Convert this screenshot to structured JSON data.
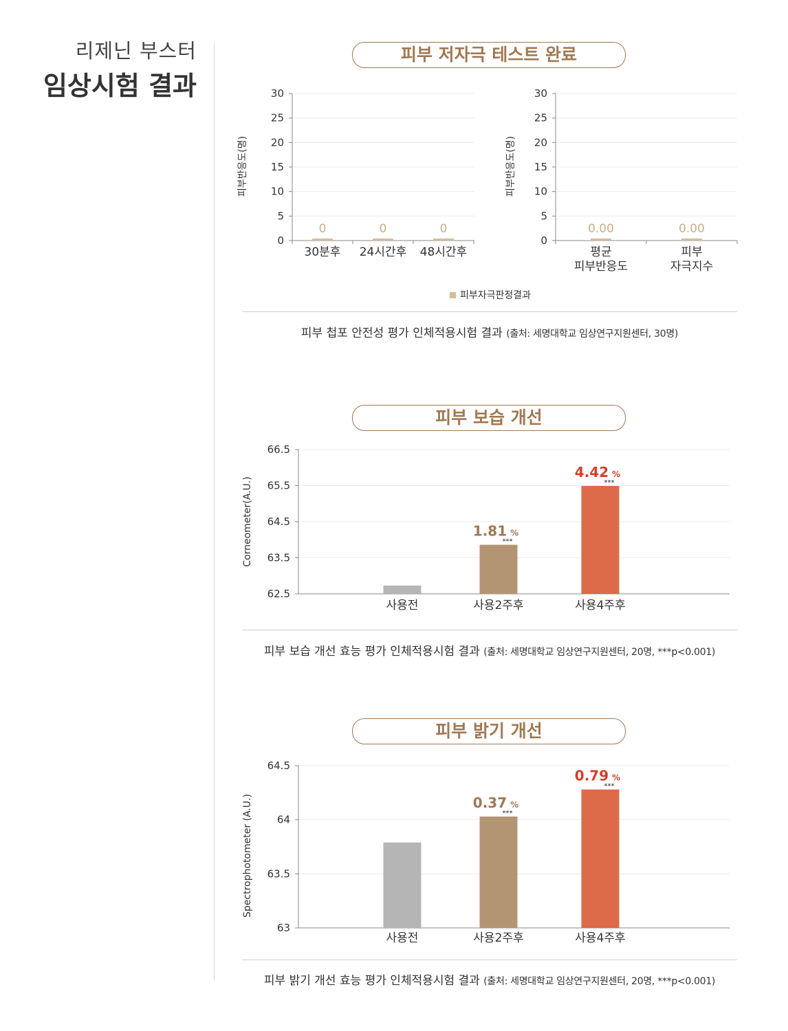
{
  "heading": {
    "subtitle": "리제닌 부스터",
    "title": "임상시험 결과"
  },
  "sections": [
    {
      "pill_title": "피부 저자극 테스트 완료",
      "caption_main": "피부 첩포 안전성 평가 인체적용시험 결과",
      "caption_source": "(출처: 세명대학교 임상연구지원센터, 30명)"
    },
    {
      "pill_title": "피부 보습 개선",
      "caption_main": "피부 보습 개선 효능 평가 인체적용시험 결과",
      "caption_source": "(출처: 세명대학교 임상연구지원센터, 20명, ***p<0.001)"
    },
    {
      "pill_title": "피부 밝기 개선",
      "caption_main": "피부 밝기 개선 효능 평가 인체적용시험 결과",
      "caption_source": "(출처: 세명대학교 임상연구지원센터, 20명, ***p<0.001)"
    }
  ],
  "legend": {
    "label": "피부자극판정결과",
    "color": "#d6bd9e"
  },
  "chart_data": [
    {
      "id": "irr1",
      "type": "bar",
      "ylabel": "피부반응도(명)",
      "ylim": [
        0,
        30
      ],
      "yticks": [
        "0",
        "5",
        "10",
        "15",
        "20",
        "25",
        "30"
      ],
      "categories": [
        [
          "30분후"
        ],
        [
          "24시간후"
        ],
        [
          "48시간후"
        ]
      ],
      "values": [
        0,
        0,
        0
      ],
      "data_labels": [
        "0",
        "0",
        "0"
      ],
      "bar_color": "#d6bd9e",
      "label_color": "#c9ad8a",
      "grid": true
    },
    {
      "id": "irr2",
      "type": "bar",
      "ylabel": "피부반응도(명)",
      "ylim": [
        0,
        30
      ],
      "yticks": [
        "0",
        "5",
        "10",
        "15",
        "20",
        "25",
        "30"
      ],
      "categories": [
        [
          "평균",
          "피부반응도"
        ],
        [
          "피부",
          "자극지수"
        ]
      ],
      "values": [
        0,
        0
      ],
      "data_labels": [
        "0.00",
        "0.00"
      ],
      "bar_color": "#d6bd9e",
      "label_color": "#c9ad8a",
      "grid": true
    },
    {
      "id": "moist",
      "type": "bar",
      "ylabel": "Corneometer(A.U.)",
      "ylim": [
        62.5,
        66.5
      ],
      "yticks": [
        "62.5",
        "63.5",
        "64.5",
        "65.5",
        "66.5"
      ],
      "categories": [
        [
          "사용전"
        ],
        [
          "사용2주후"
        ],
        [
          "사용4주후"
        ]
      ],
      "values": [
        62.73,
        63.86,
        65.49
      ],
      "bar_colors": [
        "#b5b5b5",
        "#b39574",
        "#dd6a48"
      ],
      "annotations": [
        null,
        {
          "value": "1.81",
          "unit": "%",
          "sig": "***",
          "color": "#a07852"
        },
        {
          "value": "4.42",
          "unit": "%",
          "sig": "***",
          "color": "#d2412a"
        }
      ],
      "grid": true
    },
    {
      "id": "bright",
      "type": "bar",
      "ylabel": "Spectrophotometer (A.U.)",
      "ylim": [
        63,
        64.5
      ],
      "yticks": [
        "63",
        "63.5",
        "64",
        "64.5"
      ],
      "categories": [
        [
          "사용전"
        ],
        [
          "사용2주후"
        ],
        [
          "사용4주후"
        ]
      ],
      "values": [
        63.79,
        64.03,
        64.28
      ],
      "bar_colors": [
        "#b5b5b5",
        "#b39574",
        "#dd6a48"
      ],
      "annotations": [
        null,
        {
          "value": "0.37",
          "unit": "%",
          "sig": "***",
          "color": "#a07852"
        },
        {
          "value": "0.79",
          "unit": "%",
          "sig": "***",
          "color": "#d2412a"
        }
      ],
      "grid": true
    }
  ]
}
